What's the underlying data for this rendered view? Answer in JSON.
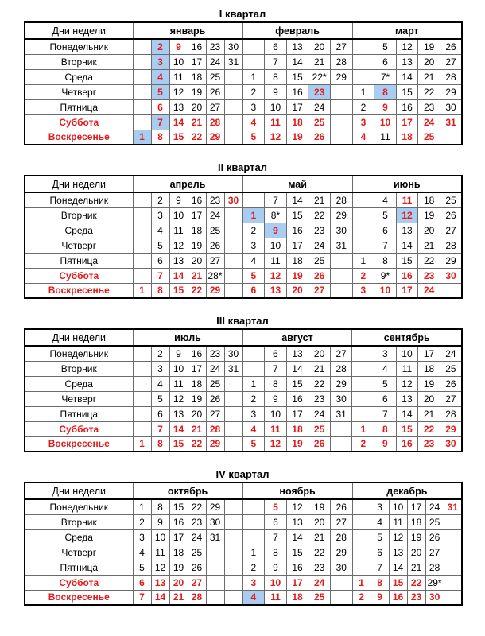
{
  "colors": {
    "red": "#e21a1a",
    "highlight": "#a8cdf0",
    "thick_border": "#000000",
    "thin_border": "#6b6b6b"
  },
  "cell_flags_note": "cell string format: 'text!flags' where r=red holiday/day-off text, h=blue highlighted holiday cell; '*' in text = shortened workday as printed",
  "header": {
    "days_label": "Дни недели"
  },
  "days": [
    {
      "label": "Понедельник",
      "red": false
    },
    {
      "label": "Вторник",
      "red": false
    },
    {
      "label": "Среда",
      "red": false
    },
    {
      "label": "Четверг",
      "red": false
    },
    {
      "label": "Пятница",
      "red": false
    },
    {
      "label": "Суббота",
      "red": true
    },
    {
      "label": "Воскресенье",
      "red": true
    }
  ],
  "quarters": [
    {
      "title": "I квартал",
      "months": [
        {
          "name": "январь",
          "cols": 6,
          "rows": [
            [
              "",
              "2!rh",
              "9!r",
              "16",
              "23",
              "30"
            ],
            [
              "",
              "3!rh",
              "10",
              "17",
              "24",
              "31"
            ],
            [
              "",
              "4!rh",
              "11",
              "18",
              "25",
              ""
            ],
            [
              "",
              "5!rh",
              "12",
              "19",
              "26",
              ""
            ],
            [
              "",
              "6!r",
              "13",
              "20",
              "27",
              ""
            ],
            [
              "",
              "7!rh",
              "14!r",
              "21!r",
              "28!r",
              ""
            ],
            [
              "1!rh",
              "8!r",
              "15!r",
              "22!r",
              "29!r",
              ""
            ]
          ]
        },
        {
          "name": "февраль",
          "cols": 5,
          "rows": [
            [
              "",
              "6",
              "13",
              "20",
              "27"
            ],
            [
              "",
              "7",
              "14",
              "21",
              "28"
            ],
            [
              "1",
              "8",
              "15",
              "22*",
              "29"
            ],
            [
              "2",
              "9",
              "16",
              "23!rh",
              ""
            ],
            [
              "3",
              "10",
              "17",
              "24",
              ""
            ],
            [
              "4!r",
              "11!r",
              "18!r",
              "25!r",
              ""
            ],
            [
              "5!r",
              "12!r",
              "19!r",
              "26!r",
              ""
            ]
          ]
        },
        {
          "name": "март",
          "cols": 5,
          "rows": [
            [
              "",
              "5",
              "12",
              "19",
              "26"
            ],
            [
              "",
              "6",
              "13",
              "20",
              "27"
            ],
            [
              "",
              "7*",
              "14",
              "21",
              "28"
            ],
            [
              "1",
              "8!rh",
              "15",
              "22",
              "29"
            ],
            [
              "2",
              "9!r",
              "16",
              "23",
              "30"
            ],
            [
              "3!r",
              "10!r",
              "17!r",
              "24!r",
              "31!r"
            ],
            [
              "4!r",
              "11",
              "18!r",
              "25!r",
              ""
            ]
          ]
        }
      ]
    },
    {
      "title": "II квартал",
      "months": [
        {
          "name": "апрель",
          "cols": 6,
          "rows": [
            [
              "",
              "2",
              "9",
              "16",
              "23",
              "30!r"
            ],
            [
              "",
              "3",
              "10",
              "17",
              "24",
              ""
            ],
            [
              "",
              "4",
              "11",
              "18",
              "25",
              ""
            ],
            [
              "",
              "5",
              "12",
              "19",
              "26",
              ""
            ],
            [
              "",
              "6",
              "13",
              "20",
              "27",
              ""
            ],
            [
              "",
              "7!r",
              "14!r",
              "21!r",
              "28*",
              ""
            ],
            [
              "1!r",
              "8!r",
              "15!r",
              "22!r",
              "29!r",
              ""
            ]
          ]
        },
        {
          "name": "май",
          "cols": 5,
          "rows": [
            [
              "",
              "7",
              "14",
              "21",
              "28"
            ],
            [
              "1!rh",
              "8*",
              "15",
              "22",
              "29"
            ],
            [
              "2",
              "9!rh",
              "16",
              "23",
              "30"
            ],
            [
              "3",
              "10",
              "17",
              "24",
              "31"
            ],
            [
              "4",
              "11",
              "18",
              "25",
              ""
            ],
            [
              "5!r",
              "12!r",
              "19!r",
              "26!r",
              ""
            ],
            [
              "6!r",
              "13!r",
              "20!r",
              "27!r",
              ""
            ]
          ]
        },
        {
          "name": "июнь",
          "cols": 5,
          "rows": [
            [
              "",
              "4",
              "11!r",
              "18",
              "25"
            ],
            [
              "",
              "5",
              "12!rh",
              "19",
              "26"
            ],
            [
              "",
              "6",
              "13",
              "20",
              "27"
            ],
            [
              "",
              "7",
              "14",
              "21",
              "28"
            ],
            [
              "1",
              "8",
              "15",
              "22",
              "29"
            ],
            [
              "2!r",
              "9*",
              "16!r",
              "23!r",
              "30!r"
            ],
            [
              "3!r",
              "10!r",
              "17!r",
              "24!r",
              ""
            ]
          ]
        }
      ]
    },
    {
      "title": "III квартал",
      "months": [
        {
          "name": "июль",
          "cols": 6,
          "rows": [
            [
              "",
              "2",
              "9",
              "16",
              "23",
              "30"
            ],
            [
              "",
              "3",
              "10",
              "17",
              "24",
              "31"
            ],
            [
              "",
              "4",
              "11",
              "18",
              "25",
              ""
            ],
            [
              "",
              "5",
              "12",
              "19",
              "26",
              ""
            ],
            [
              "",
              "6",
              "13",
              "20",
              "27",
              ""
            ],
            [
              "",
              "7!r",
              "14!r",
              "21!r",
              "28!r",
              ""
            ],
            [
              "1!r",
              "8!r",
              "15!r",
              "22!r",
              "29!r",
              ""
            ]
          ]
        },
        {
          "name": "август",
          "cols": 5,
          "rows": [
            [
              "",
              "6",
              "13",
              "20",
              "27"
            ],
            [
              "",
              "7",
              "14",
              "21",
              "28"
            ],
            [
              "1",
              "8",
              "15",
              "22",
              "29"
            ],
            [
              "2",
              "9",
              "16",
              "23",
              "30"
            ],
            [
              "3",
              "10",
              "17",
              "24",
              "31"
            ],
            [
              "4!r",
              "11!r",
              "18!r",
              "25!r",
              ""
            ],
            [
              "5!r",
              "12!r",
              "19!r",
              "26!r",
              ""
            ]
          ]
        },
        {
          "name": "сентябрь",
          "cols": 5,
          "rows": [
            [
              "",
              "3",
              "10",
              "17",
              "24"
            ],
            [
              "",
              "4",
              "11",
              "18",
              "25"
            ],
            [
              "",
              "5",
              "12",
              "19",
              "26"
            ],
            [
              "",
              "6",
              "13",
              "20",
              "27"
            ],
            [
              "",
              "7",
              "14",
              "21",
              "28"
            ],
            [
              "1!r",
              "8!r",
              "15!r",
              "22!r",
              "29!r"
            ],
            [
              "2!r",
              "9!r",
              "16!r",
              "23!r",
              "30!r"
            ]
          ]
        }
      ]
    },
    {
      "title": "IV квартал",
      "months": [
        {
          "name": "октябрь",
          "cols": 6,
          "rows": [
            [
              "1",
              "8",
              "15",
              "22",
              "29",
              ""
            ],
            [
              "2",
              "9",
              "16",
              "23",
              "30",
              ""
            ],
            [
              "3",
              "10",
              "17",
              "24",
              "31",
              ""
            ],
            [
              "4",
              "11",
              "18",
              "25",
              "",
              ""
            ],
            [
              "5",
              "12",
              "19",
              "26",
              "",
              ""
            ],
            [
              "6!r",
              "13!r",
              "20!r",
              "27!r",
              "",
              ""
            ],
            [
              "7!r",
              "14!r",
              "21!r",
              "28!r",
              "",
              ""
            ]
          ]
        },
        {
          "name": "ноябрь",
          "cols": 5,
          "rows": [
            [
              "",
              "5!r",
              "12",
              "19",
              "26"
            ],
            [
              "",
              "6",
              "13",
              "20",
              "27"
            ],
            [
              "",
              "7",
              "14",
              "21",
              "28"
            ],
            [
              "1",
              "8",
              "15",
              "22",
              "29"
            ],
            [
              "2",
              "9",
              "16",
              "23",
              "30"
            ],
            [
              "3!r",
              "10!r",
              "17!r",
              "24!r",
              ""
            ],
            [
              "4!rh",
              "11!r",
              "18!r",
              "25!r",
              ""
            ]
          ]
        },
        {
          "name": "декабрь",
          "cols": 6,
          "rows": [
            [
              "",
              "3",
              "10",
              "17",
              "24",
              "31!r"
            ],
            [
              "",
              "4",
              "11",
              "18",
              "25",
              ""
            ],
            [
              "",
              "5",
              "12",
              "19",
              "26",
              ""
            ],
            [
              "",
              "6",
              "13",
              "20",
              "27",
              ""
            ],
            [
              "",
              "7",
              "14",
              "21",
              "28",
              ""
            ],
            [
              "1!r",
              "8!r",
              "15!r",
              "22!r",
              "29*",
              ""
            ],
            [
              "2!r",
              "9!r",
              "16!r",
              "23!r",
              "30!r",
              ""
            ]
          ]
        }
      ]
    }
  ]
}
